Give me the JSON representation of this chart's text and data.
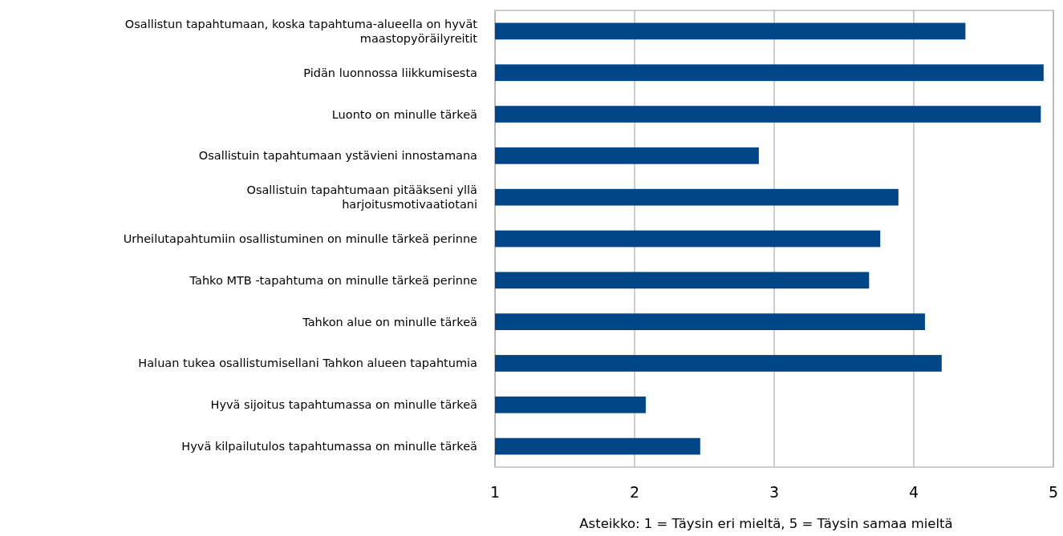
{
  "chart_data": {
    "type": "bar",
    "orientation": "horizontal",
    "categories": [
      "Osallistun tapahtumaan, koska tapahtuma-alueella on hyvät maastopyöräilyreitit",
      "Pidän luonnossa liikkumisesta",
      "Luonto on minulle tärkeä",
      "Osallistuin tapahtumaan ystävieni innostamana",
      "Osallistuin tapahtumaan pitääkseni yllä harjoitusmotivaatiotani",
      "Urheilutapahtumiin osallistuminen on minulle tärkeä perinne",
      "Tahko MTB -tapahtuma on minulle tärkeä perinne",
      "Tahkon alue on minulle tärkeä",
      "Haluan tukea osallistumisellani Tahkon alueen tapahtumia",
      "Hyvä sijoitus tapahtumassa on minulle tärkeä",
      "Hyvä kilpailutulos tapahtumassa on minulle tärkeä"
    ],
    "values": [
      4.37,
      4.93,
      4.91,
      2.89,
      3.89,
      3.76,
      3.68,
      4.08,
      4.2,
      2.08,
      2.47
    ],
    "color": "#004586",
    "xlim": [
      1,
      5
    ],
    "xticks": [
      1,
      2,
      3,
      4,
      5
    ],
    "grid": "x",
    "xlabel": "Asteikko: 1 = Täysin eri mieltä, 5 = Täysin samaa mieltä"
  }
}
